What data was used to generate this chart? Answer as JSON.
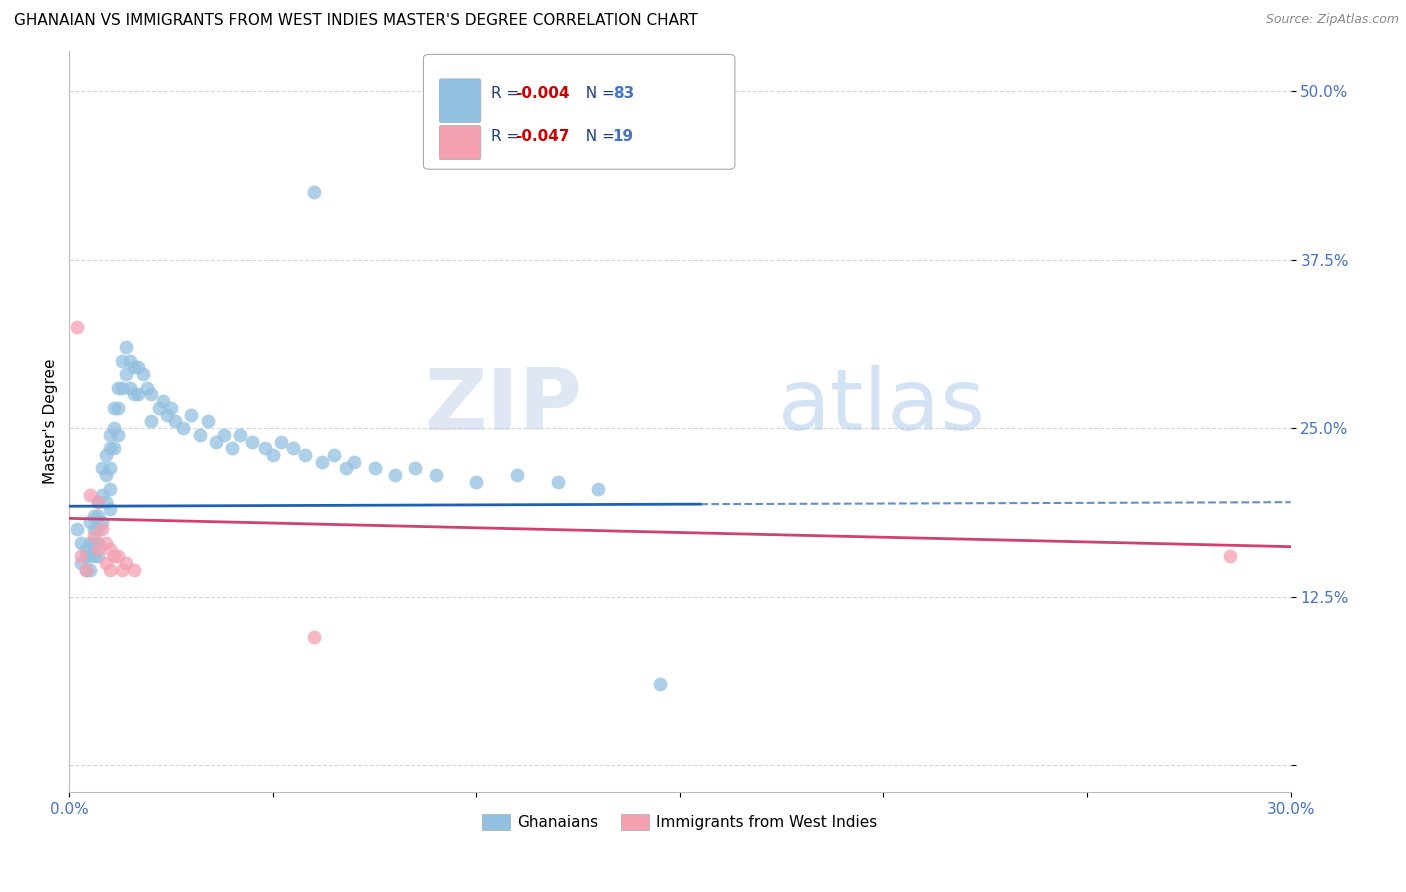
{
  "title": "GHANAIAN VS IMMIGRANTS FROM WEST INDIES MASTER'S DEGREE CORRELATION CHART",
  "source": "Source: ZipAtlas.com",
  "ylabel": "Master's Degree",
  "legend_label_blue": "Ghanaians",
  "legend_label_pink": "Immigrants from West Indies",
  "xmin": 0.0,
  "xmax": 0.3,
  "ymin": -0.02,
  "ymax": 0.53,
  "yticks": [
    0.0,
    0.125,
    0.25,
    0.375,
    0.5
  ],
  "ytick_labels": [
    "",
    "12.5%",
    "25.0%",
    "37.5%",
    "50.0%"
  ],
  "xticks": [
    0.0,
    0.05,
    0.1,
    0.15,
    0.2,
    0.25,
    0.3
  ],
  "xtick_labels": [
    "0.0%",
    "",
    "",
    "",
    "",
    "",
    "30.0%"
  ],
  "blue_color": "#92C0E0",
  "pink_color": "#F4A0B0",
  "blue_line_color": "#2060B0",
  "pink_line_color": "#D04070",
  "marker_size": 100,
  "watermark_zip": "ZIP",
  "watermark_atlas": "atlas",
  "blue_scatter_x": [
    0.002,
    0.003,
    0.003,
    0.004,
    0.004,
    0.004,
    0.005,
    0.005,
    0.005,
    0.005,
    0.006,
    0.006,
    0.006,
    0.006,
    0.007,
    0.007,
    0.007,
    0.007,
    0.007,
    0.008,
    0.008,
    0.008,
    0.009,
    0.009,
    0.009,
    0.01,
    0.01,
    0.01,
    0.01,
    0.01,
    0.011,
    0.011,
    0.011,
    0.012,
    0.012,
    0.012,
    0.013,
    0.013,
    0.014,
    0.014,
    0.015,
    0.015,
    0.016,
    0.016,
    0.017,
    0.017,
    0.018,
    0.019,
    0.02,
    0.02,
    0.022,
    0.023,
    0.024,
    0.025,
    0.026,
    0.028,
    0.03,
    0.032,
    0.034,
    0.036,
    0.038,
    0.04,
    0.042,
    0.045,
    0.048,
    0.05,
    0.052,
    0.055,
    0.058,
    0.06,
    0.062,
    0.065,
    0.068,
    0.07,
    0.075,
    0.08,
    0.085,
    0.09,
    0.1,
    0.11,
    0.12,
    0.13,
    0.145
  ],
  "blue_scatter_y": [
    0.175,
    0.165,
    0.15,
    0.16,
    0.155,
    0.145,
    0.18,
    0.165,
    0.155,
    0.145,
    0.185,
    0.175,
    0.165,
    0.155,
    0.195,
    0.185,
    0.175,
    0.165,
    0.155,
    0.22,
    0.2,
    0.18,
    0.23,
    0.215,
    0.195,
    0.245,
    0.235,
    0.22,
    0.205,
    0.19,
    0.265,
    0.25,
    0.235,
    0.28,
    0.265,
    0.245,
    0.3,
    0.28,
    0.31,
    0.29,
    0.3,
    0.28,
    0.295,
    0.275,
    0.295,
    0.275,
    0.29,
    0.28,
    0.275,
    0.255,
    0.265,
    0.27,
    0.26,
    0.265,
    0.255,
    0.25,
    0.26,
    0.245,
    0.255,
    0.24,
    0.245,
    0.235,
    0.245,
    0.24,
    0.235,
    0.23,
    0.24,
    0.235,
    0.23,
    0.425,
    0.225,
    0.23,
    0.22,
    0.225,
    0.22,
    0.215,
    0.22,
    0.215,
    0.21,
    0.215,
    0.21,
    0.205,
    0.06
  ],
  "pink_scatter_x": [
    0.002,
    0.003,
    0.004,
    0.005,
    0.006,
    0.007,
    0.007,
    0.008,
    0.009,
    0.009,
    0.01,
    0.01,
    0.011,
    0.012,
    0.013,
    0.014,
    0.016,
    0.06,
    0.285
  ],
  "pink_scatter_y": [
    0.325,
    0.155,
    0.145,
    0.2,
    0.17,
    0.195,
    0.16,
    0.175,
    0.165,
    0.15,
    0.16,
    0.145,
    0.155,
    0.155,
    0.145,
    0.15,
    0.145,
    0.095,
    0.155
  ],
  "blue_trend_y_start": 0.192,
  "blue_trend_y_end": 0.195,
  "blue_trend_solid_end": 0.155,
  "pink_trend_y_start": 0.183,
  "pink_trend_y_end": 0.162,
  "tick_color": "#4472C4",
  "grid_color": "#CCCCCC",
  "title_fontsize": 11,
  "axis_label_fontsize": 11,
  "tick_fontsize": 11,
  "legend_fontsize": 11,
  "source_fontsize": 9,
  "legend_r_color": "#1F3E7A",
  "legend_n_color": "#4472C4"
}
